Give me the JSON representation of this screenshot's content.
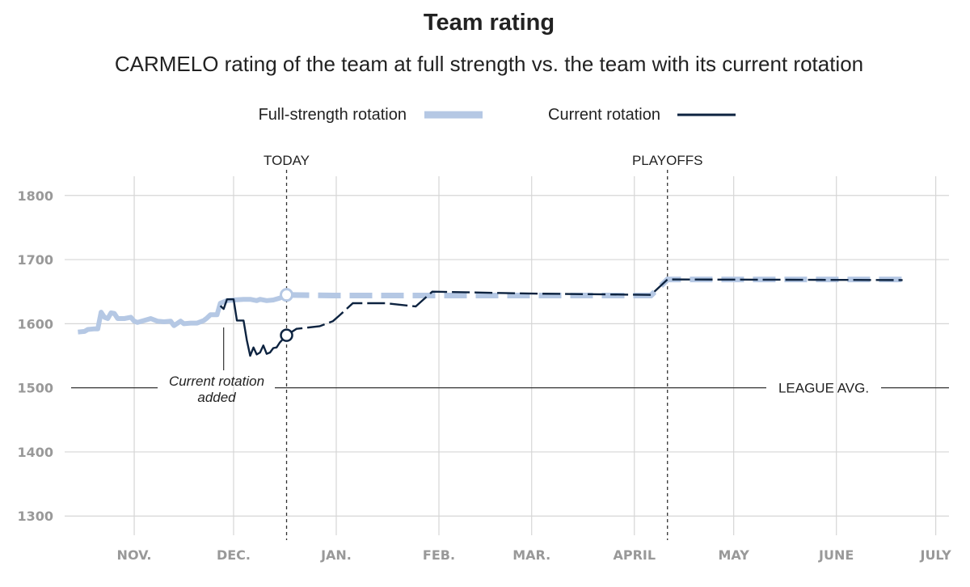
{
  "title": "Team rating",
  "subtitle": "CARMELO rating of the team at full strength vs. the team with its current rotation",
  "legend": [
    {
      "label": "Full-strength rotation",
      "color": "#b5c8e4"
    },
    {
      "label": "Current rotation",
      "color": "#0d2340"
    }
  ],
  "markers": {
    "today": "TODAY",
    "playoffs": "PLAYOFFS"
  },
  "annotation": {
    "line1": "Current rotation",
    "line2": "added"
  },
  "baseline": {
    "label": "LEAGUE AVG.",
    "value": 1500
  },
  "chart_data": {
    "type": "line",
    "title": "Team rating",
    "subtitle": "CARMELO rating of the team at full strength vs. the team with its current rotation",
    "x_ticks": [
      "NOV.",
      "DEC.",
      "JAN.",
      "FEB.",
      "MAR.",
      "APRIL",
      "MAY",
      "JUNE",
      "JULY"
    ],
    "x_tick_values": [
      2,
      32,
      63,
      94,
      122,
      153,
      183,
      214,
      244
    ],
    "ylim": [
      1270,
      1830
    ],
    "y_ticks": [
      1300,
      1400,
      1500,
      1600,
      1700,
      1800
    ],
    "today_x": 48,
    "playoffs_x": 163,
    "annotation_x": 29,
    "series": [
      {
        "name": "Full-strength rotation",
        "color": "#b5c8e4",
        "history": [
          [
            -15,
            1587
          ],
          [
            -13,
            1588
          ],
          [
            -12,
            1591
          ],
          [
            -10,
            1592
          ],
          [
            -9,
            1592
          ],
          [
            -8,
            1618
          ],
          [
            -7,
            1610
          ],
          [
            -6,
            1608
          ],
          [
            -5,
            1617
          ],
          [
            -4,
            1616
          ],
          [
            -3,
            1608
          ],
          [
            -1,
            1608
          ],
          [
            1,
            1610
          ],
          [
            2,
            1604
          ],
          [
            3,
            1602
          ],
          [
            5,
            1605
          ],
          [
            7,
            1608
          ],
          [
            9,
            1604
          ],
          [
            11,
            1603
          ],
          [
            13,
            1604
          ],
          [
            14,
            1597
          ],
          [
            16,
            1604
          ],
          [
            17,
            1600
          ],
          [
            19,
            1601
          ],
          [
            21,
            1601
          ],
          [
            23,
            1605
          ],
          [
            24,
            1609
          ],
          [
            25,
            1614
          ],
          [
            27,
            1614
          ],
          [
            28,
            1632
          ],
          [
            30,
            1636
          ],
          [
            32,
            1637
          ],
          [
            35,
            1638
          ],
          [
            37,
            1638
          ],
          [
            39,
            1636
          ],
          [
            40,
            1638
          ],
          [
            42,
            1636
          ],
          [
            44,
            1637
          ],
          [
            46,
            1640
          ],
          [
            48,
            1645
          ]
        ],
        "projection": [
          [
            48,
            1645
          ],
          [
            62,
            1644
          ],
          [
            122,
            1644
          ],
          [
            158,
            1644
          ],
          [
            163,
            1669
          ],
          [
            234,
            1669
          ]
        ]
      },
      {
        "name": "Current rotation",
        "color": "#0d2340",
        "history": [
          [
            28,
            1628
          ],
          [
            29,
            1623
          ],
          [
            30,
            1638
          ],
          [
            32,
            1638
          ],
          [
            33,
            1605
          ],
          [
            34,
            1605
          ],
          [
            35,
            1605
          ],
          [
            36,
            1574
          ],
          [
            37,
            1550
          ],
          [
            38,
            1563
          ],
          [
            39,
            1552
          ],
          [
            40,
            1555
          ],
          [
            41,
            1566
          ],
          [
            42,
            1553
          ],
          [
            43,
            1555
          ],
          [
            44,
            1562
          ],
          [
            45,
            1563
          ],
          [
            46,
            1571
          ],
          [
            48,
            1582
          ]
        ],
        "projection": [
          [
            48,
            1582
          ],
          [
            51,
            1592
          ],
          [
            58,
            1596
          ],
          [
            62,
            1604
          ],
          [
            64,
            1613
          ],
          [
            68,
            1632
          ],
          [
            78,
            1632
          ],
          [
            87,
            1627
          ],
          [
            92,
            1650
          ],
          [
            122,
            1647
          ],
          [
            158,
            1645
          ],
          [
            163,
            1669
          ],
          [
            234,
            1668
          ]
        ]
      }
    ]
  }
}
